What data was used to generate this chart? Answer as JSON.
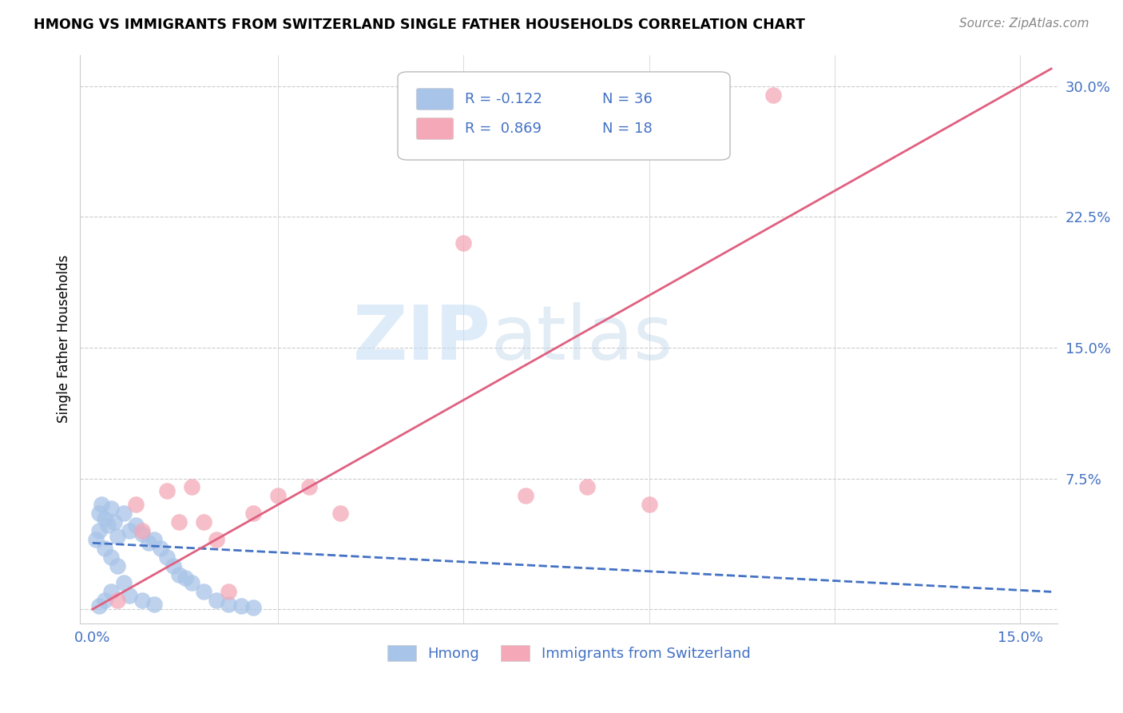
{
  "title": "HMONG VS IMMIGRANTS FROM SWITZERLAND SINGLE FATHER HOUSEHOLDS CORRELATION CHART",
  "source": "Source: ZipAtlas.com",
  "ylabel_label": "Single Father Households",
  "x_ticks": [
    0.0,
    0.03,
    0.06,
    0.09,
    0.12,
    0.15
  ],
  "x_tick_labels": [
    "0.0%",
    "",
    "",
    "",
    "",
    "15.0%"
  ],
  "y_ticks": [
    0.0,
    0.075,
    0.15,
    0.225,
    0.3
  ],
  "y_tick_labels": [
    "",
    "7.5%",
    "15.0%",
    "22.5%",
    "30.0%"
  ],
  "xlim": [
    -0.002,
    0.156
  ],
  "ylim": [
    -0.008,
    0.318
  ],
  "hmong_color": "#a8c4e8",
  "swiss_color": "#f4a8b8",
  "hmong_line_color": "#4472c4",
  "swiss_line_color": "#e06080",
  "legend_r_hmong": "R = -0.122",
  "legend_n_hmong": "N = 36",
  "legend_r_swiss": "R =  0.869",
  "legend_n_swiss": "N = 18",
  "watermark_zip": "ZIP",
  "watermark_atlas": "atlas",
  "hmong_scatter_x": [
    0.0005,
    0.001,
    0.001,
    0.0015,
    0.002,
    0.002,
    0.0025,
    0.003,
    0.003,
    0.0035,
    0.004,
    0.004,
    0.005,
    0.005,
    0.006,
    0.007,
    0.008,
    0.009,
    0.01,
    0.011,
    0.012,
    0.013,
    0.014,
    0.015,
    0.016,
    0.018,
    0.02,
    0.022,
    0.024,
    0.026,
    0.001,
    0.002,
    0.003,
    0.006,
    0.008,
    0.01
  ],
  "hmong_scatter_y": [
    0.04,
    0.055,
    0.045,
    0.06,
    0.052,
    0.035,
    0.048,
    0.058,
    0.03,
    0.05,
    0.042,
    0.025,
    0.055,
    0.015,
    0.045,
    0.048,
    0.043,
    0.038,
    0.04,
    0.035,
    0.03,
    0.025,
    0.02,
    0.018,
    0.015,
    0.01,
    0.005,
    0.003,
    0.002,
    0.001,
    0.002,
    0.005,
    0.01,
    0.008,
    0.005,
    0.003
  ],
  "swiss_scatter_x": [
    0.004,
    0.007,
    0.008,
    0.012,
    0.014,
    0.016,
    0.018,
    0.02,
    0.022,
    0.026,
    0.03,
    0.035,
    0.04,
    0.06,
    0.07,
    0.08,
    0.09,
    0.11
  ],
  "swiss_scatter_y": [
    0.005,
    0.06,
    0.045,
    0.068,
    0.05,
    0.07,
    0.05,
    0.04,
    0.01,
    0.055,
    0.065,
    0.07,
    0.055,
    0.21,
    0.065,
    0.07,
    0.06,
    0.295
  ],
  "hmong_line_x": [
    0.0,
    0.155
  ],
  "hmong_line_y": [
    0.038,
    0.01
  ],
  "swiss_line_x": [
    0.0,
    0.155
  ],
  "swiss_line_y": [
    0.0,
    0.31
  ]
}
